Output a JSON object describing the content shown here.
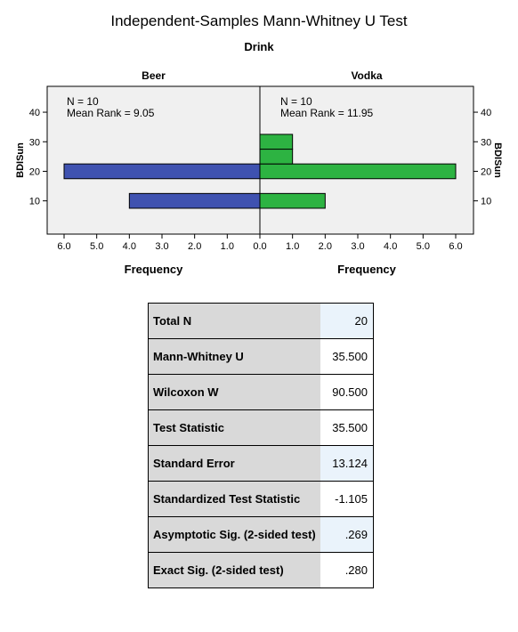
{
  "title": "Independent-Samples Mann-Whitney U Test",
  "subtitle": "Drink",
  "chart_data": {
    "type": "bar",
    "orientation": "back-to-back-horizontal",
    "groups": [
      {
        "name": "Beer",
        "n_label": "N = 10",
        "mean_rank_label": "Mean Rank = 9.05",
        "color": "#3f52b0",
        "bins": [
          {
            "y": 10,
            "frequency": 4
          },
          {
            "y": 20,
            "frequency": 6
          }
        ]
      },
      {
        "name": "Vodka",
        "n_label": "N = 10",
        "mean_rank_label": "Mean Rank = 11.95",
        "color": "#2db342",
        "bins": [
          {
            "y": 10,
            "frequency": 2
          },
          {
            "y": 20,
            "frequency": 6
          },
          {
            "y": 25,
            "frequency": 1
          },
          {
            "y": 30,
            "frequency": 1
          }
        ]
      }
    ],
    "y_label": "BDISun",
    "y_ticks": [
      "10",
      "20",
      "30",
      "40"
    ],
    "x_label": "Frequency",
    "x_ticks": [
      "0.0",
      "1.0",
      "2.0",
      "3.0",
      "4.0",
      "5.0",
      "6.0"
    ],
    "bin_width": 5,
    "ylim": [
      -1.25,
      48.75
    ],
    "xlim": [
      0,
      6
    ]
  },
  "stats_table": [
    {
      "label": "Total N",
      "value": "20"
    },
    {
      "label": "Mann-Whitney U",
      "value": "35.500"
    },
    {
      "label": "Wilcoxon W",
      "value": "90.500"
    },
    {
      "label": "Test Statistic",
      "value": "35.500"
    },
    {
      "label": "Standard Error",
      "value": "13.124"
    },
    {
      "label": "Standardized Test Statistic",
      "value": "-1.105"
    },
    {
      "label": "Asymptotic Sig. (2-sided test)",
      "value": ".269"
    },
    {
      "label": "Exact Sig. (2-sided test)",
      "value": ".280"
    }
  ]
}
